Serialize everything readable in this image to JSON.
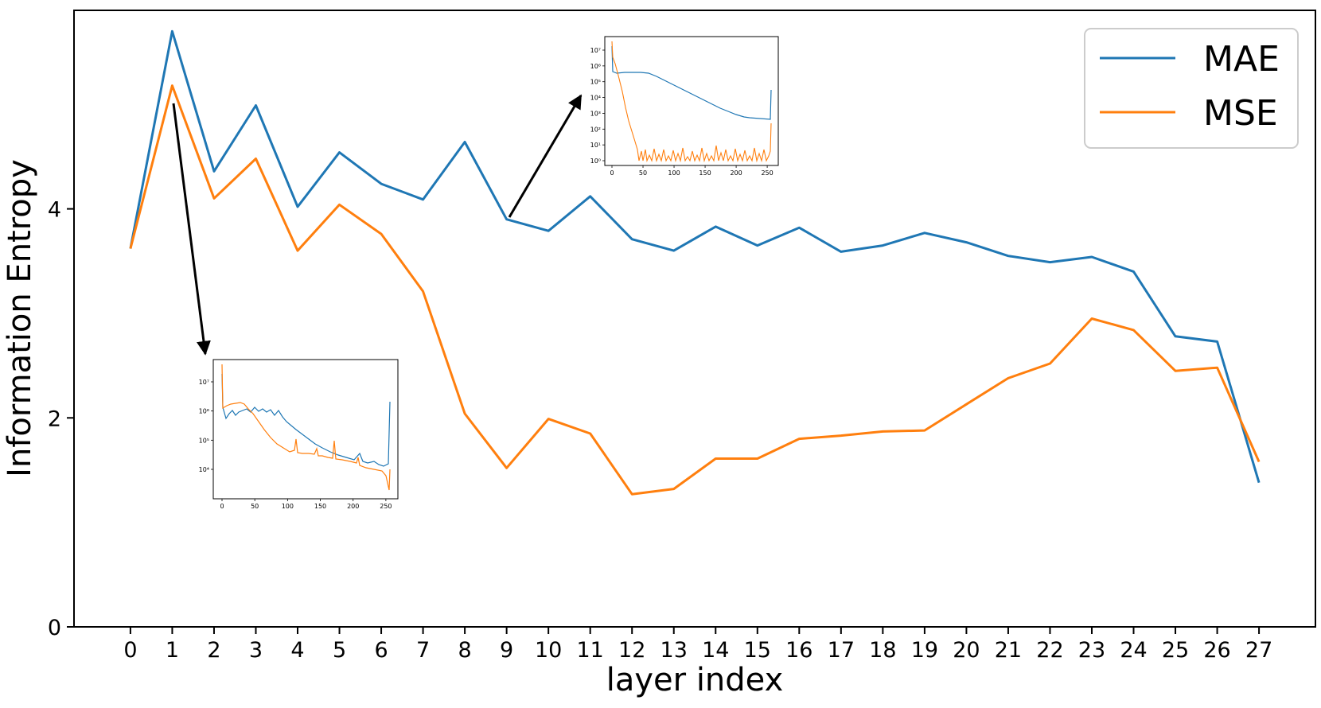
{
  "chart_data": {
    "type": "line",
    "title": "",
    "xlabel": "layer index",
    "ylabel": "Information Entropy",
    "x": [
      0,
      1,
      2,
      3,
      4,
      5,
      6,
      7,
      8,
      9,
      10,
      11,
      12,
      13,
      14,
      15,
      16,
      17,
      18,
      19,
      20,
      21,
      22,
      23,
      24,
      25,
      26,
      27
    ],
    "x_tick_labels": [
      "0",
      "1",
      "2",
      "3",
      "4",
      "5",
      "6",
      "7",
      "8",
      "9",
      "10",
      "11",
      "12",
      "13",
      "14",
      "15",
      "16",
      "17",
      "18",
      "19",
      "20",
      "21",
      "22",
      "23",
      "24",
      "25",
      "26",
      "27"
    ],
    "y_ticks": [
      0,
      2,
      4
    ],
    "y_tick_labels": [
      "0",
      "2",
      "4"
    ],
    "ylim": [
      0,
      5.9
    ],
    "xlim": [
      -1.35,
      28.35
    ],
    "grid": false,
    "legend_position": "top-right",
    "series": [
      {
        "name": "MAE",
        "color": "#1f77b4",
        "values": [
          3.62,
          5.7,
          4.36,
          4.99,
          4.02,
          4.54,
          4.24,
          4.09,
          4.64,
          3.9,
          3.79,
          4.12,
          3.71,
          3.6,
          3.83,
          3.65,
          3.82,
          3.59,
          3.65,
          3.77,
          3.68,
          3.55,
          3.49,
          3.54,
          3.4,
          2.78,
          2.73,
          1.38
        ]
      },
      {
        "name": "MSE",
        "color": "#ff7f0e",
        "values": [
          3.62,
          5.18,
          4.1,
          4.48,
          3.6,
          4.04,
          3.76,
          3.21,
          2.04,
          1.52,
          1.99,
          1.85,
          1.27,
          1.32,
          1.61,
          1.61,
          1.8,
          1.83,
          1.87,
          1.88,
          2.13,
          2.38,
          2.52,
          2.95,
          2.84,
          2.45,
          2.48,
          1.58
        ]
      }
    ],
    "insets": [
      {
        "attached_to_layer": 1,
        "y_scale": "log",
        "y_tick_labels": [
          "10⁴",
          "10⁵",
          "10⁶",
          "10⁷"
        ],
        "x_tick_labels": [
          "0",
          "50",
          "100",
          "150",
          "200",
          "250"
        ]
      },
      {
        "attached_to_layer": 9,
        "y_scale": "log",
        "y_tick_labels": [
          "10⁰",
          "10¹",
          "10²",
          "10³",
          "10⁴",
          "10⁵",
          "10⁶",
          "10⁷"
        ],
        "x_tick_labels": [
          "0",
          "50",
          "100",
          "150",
          "200",
          "250"
        ]
      }
    ]
  }
}
